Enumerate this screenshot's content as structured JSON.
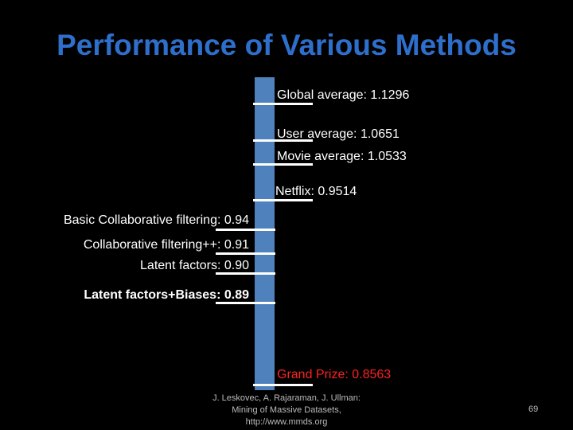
{
  "title": "Performance of Various Methods",
  "markers": [
    {
      "label": "Global average:",
      "value": "1.1296"
    },
    {
      "label": "User average:",
      "value": "1.0651"
    },
    {
      "label": "Movie average:",
      "value": "1.0533"
    },
    {
      "label": "Netflix:",
      "value": "0.9514"
    },
    {
      "label": "Basic Collaborative filtering:",
      "value": "0.94"
    },
    {
      "label": "Collaborative filtering++:",
      "value": "0.91"
    },
    {
      "label": "Latent factors:",
      "value": "0.90"
    },
    {
      "label": "Latent factors+Biases:",
      "value": "0.89"
    },
    {
      "label": "Grand Prize:",
      "value": "0.8563"
    }
  ],
  "colors": {
    "title": "#2e6fcc",
    "bar": "#4f81bd",
    "prize": "#ff2020"
  },
  "footer": {
    "line1": "J. Leskovec, A. Rajaraman, J. Ullman:",
    "line2": "Mining of Massive Datasets,",
    "line3": "http://www.mmds.org"
  },
  "page_number": "69"
}
